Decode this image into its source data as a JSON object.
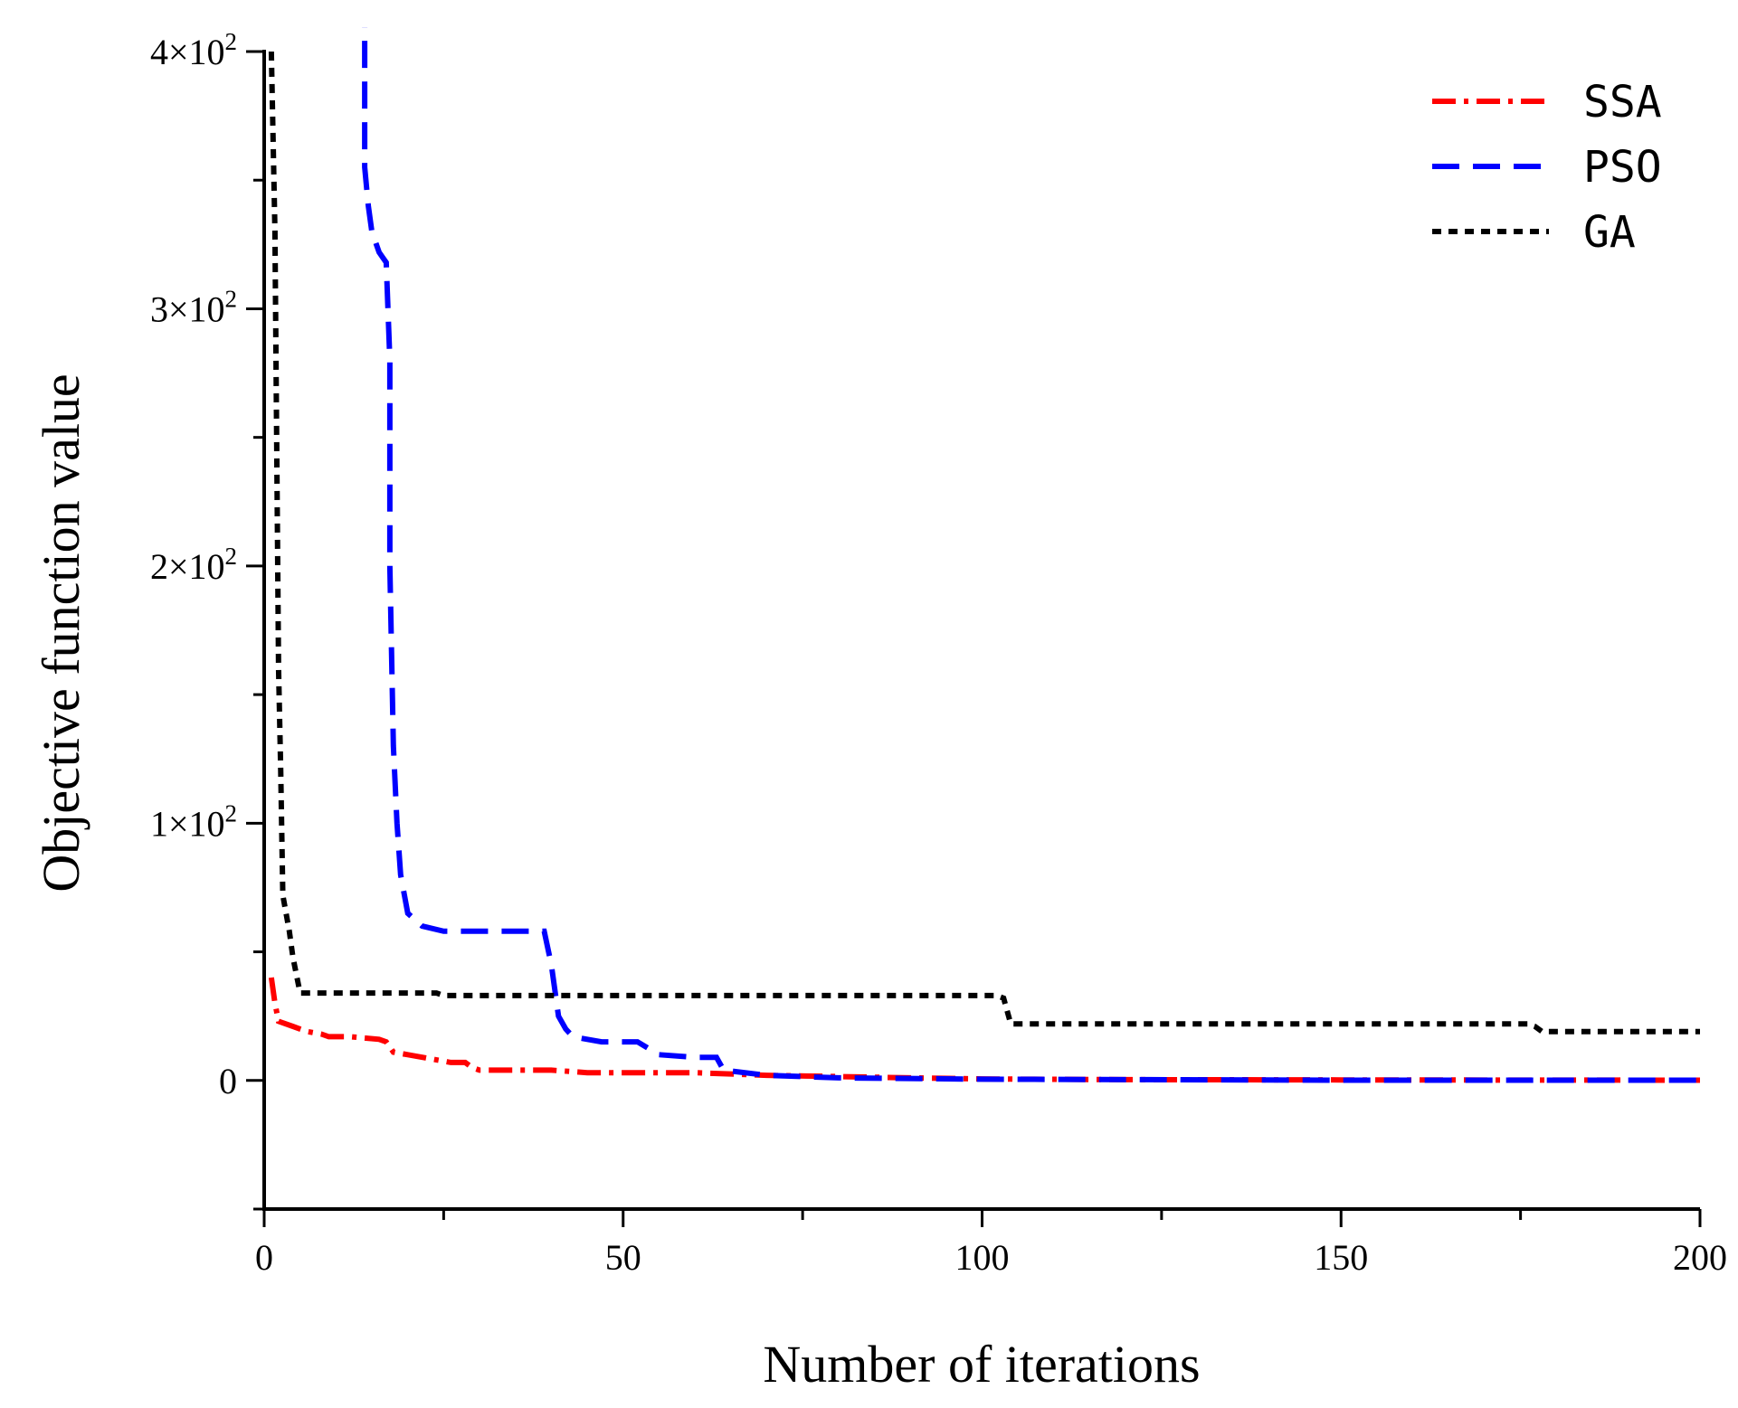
{
  "chart_data": {
    "type": "line",
    "xlabel": "Number of iterations",
    "ylabel": "Objective function value",
    "xlim": [
      0,
      200
    ],
    "ylim": [
      -50,
      400
    ],
    "x_ticks": [
      0,
      50,
      100,
      150,
      200
    ],
    "x_tick_labels": [
      "0",
      "50",
      "100",
      "150",
      "200"
    ],
    "y_ticks": [
      0,
      100,
      200,
      300,
      400
    ],
    "y_tick_mantissas": [
      "0",
      "1",
      "2",
      "3",
      "4"
    ],
    "y_tick_exponent_base": "×10",
    "y_tick_exponent": "2",
    "legend_position": "top-right",
    "series": [
      {
        "name": "SSA",
        "color": "#ff0000",
        "style": "dash-dot",
        "points": [
          [
            1,
            40
          ],
          [
            1.5,
            30
          ],
          [
            2,
            23
          ],
          [
            4,
            21
          ],
          [
            5,
            20
          ],
          [
            6,
            19
          ],
          [
            8,
            18
          ],
          [
            9,
            17
          ],
          [
            12,
            17
          ],
          [
            16,
            16
          ],
          [
            17,
            15
          ],
          [
            18,
            11
          ],
          [
            20,
            10
          ],
          [
            26,
            7
          ],
          [
            28,
            7
          ],
          [
            29,
            5
          ],
          [
            30,
            4
          ],
          [
            40,
            4
          ],
          [
            45,
            3
          ],
          [
            60,
            3
          ],
          [
            70,
            2
          ],
          [
            80,
            1.5
          ],
          [
            90,
            1
          ],
          [
            100,
            0.6
          ],
          [
            120,
            0.3
          ],
          [
            150,
            0.2
          ],
          [
            200,
            0.1
          ]
        ]
      },
      {
        "name": "PSO",
        "color": "#0000ff",
        "style": "dashed",
        "points": [
          [
            14,
            420
          ],
          [
            14,
            355
          ],
          [
            14.5,
            340
          ],
          [
            15,
            330
          ],
          [
            16,
            322
          ],
          [
            16.5,
            320
          ],
          [
            17,
            318
          ],
          [
            17.5,
            280
          ],
          [
            17.5,
            200
          ],
          [
            18,
            130
          ],
          [
            18.5,
            100
          ],
          [
            19,
            80
          ],
          [
            20,
            65
          ],
          [
            22,
            60
          ],
          [
            25,
            58
          ],
          [
            39,
            58
          ],
          [
            40,
            45
          ],
          [
            41,
            25
          ],
          [
            42,
            20
          ],
          [
            43,
            17
          ],
          [
            45,
            16
          ],
          [
            47,
            15
          ],
          [
            52,
            15
          ],
          [
            55,
            10
          ],
          [
            60,
            9
          ],
          [
            63,
            9
          ],
          [
            64,
            4
          ],
          [
            70,
            2
          ],
          [
            80,
            1
          ],
          [
            100,
            0.5
          ],
          [
            150,
            0.1
          ],
          [
            200,
            0.1
          ]
        ]
      },
      {
        "name": "GA",
        "color": "#000000",
        "style": "dotted",
        "points": [
          [
            1,
            400
          ],
          [
            1.5,
            330
          ],
          [
            2,
            160
          ],
          [
            2.3,
            120
          ],
          [
            2.6,
            72
          ],
          [
            3.5,
            58
          ],
          [
            4,
            48
          ],
          [
            5,
            34
          ],
          [
            24,
            34
          ],
          [
            25,
            33
          ],
          [
            102,
            33
          ],
          [
            103,
            32
          ],
          [
            104,
            22
          ],
          [
            140,
            22
          ],
          [
            176,
            22
          ],
          [
            177,
            21
          ],
          [
            178,
            19
          ],
          [
            200,
            19
          ]
        ]
      }
    ]
  }
}
